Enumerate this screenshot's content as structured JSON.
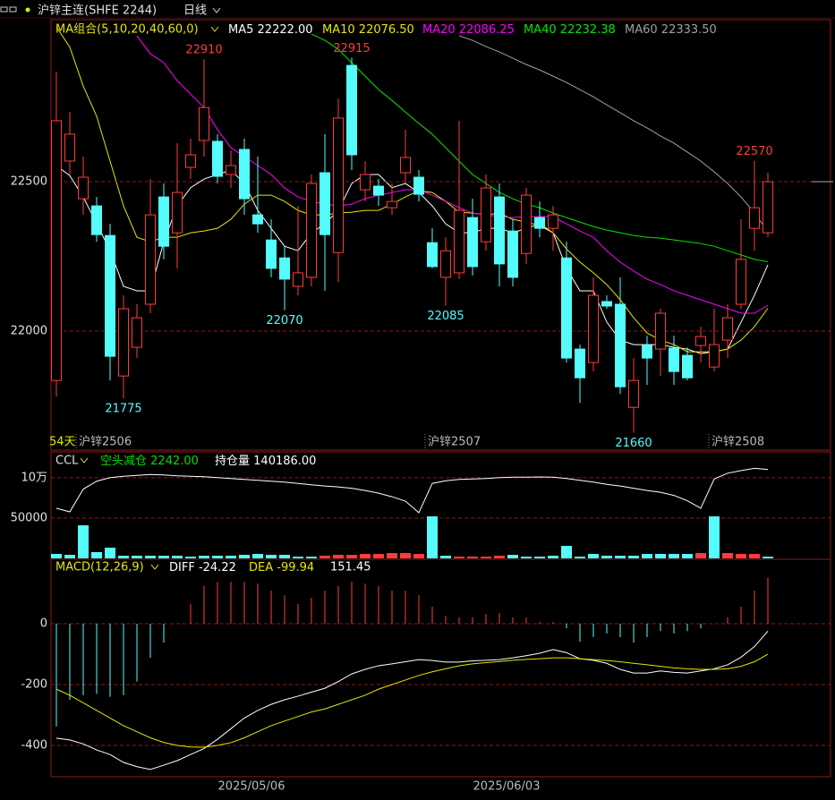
{
  "header": {
    "title": "沪锌主连(SHFE 2244)",
    "period": "日线"
  },
  "chart_data": [
    {
      "type": "candlestick",
      "title": "MA组合(5,10,20,40,60,0)",
      "categories": [
        null,
        null,
        null,
        null,
        null,
        null,
        null,
        null,
        null,
        null,
        null,
        null,
        null,
        null,
        "2025/05/06",
        null,
        null,
        null,
        null,
        null,
        null,
        null,
        null,
        null,
        null,
        null,
        null,
        null,
        null,
        null,
        null,
        null,
        null,
        "2025/06/03",
        null,
        null,
        null,
        null,
        null,
        null,
        null,
        null,
        null,
        null,
        null,
        null,
        null,
        null,
        null,
        null,
        null,
        null,
        null,
        null
      ],
      "open": [
        21835,
        22569,
        22443,
        22419,
        22320,
        21850,
        21946,
        22090,
        22449,
        22329,
        22548,
        22638,
        22635,
        22524,
        22608,
        22389,
        22305,
        22245,
        22150,
        22180,
        22530,
        22263,
        22889,
        22473,
        22485,
        22413,
        22530,
        22515,
        22296,
        22180,
        22195,
        22380,
        22299,
        22449,
        22335,
        22260,
        22380,
        22344,
        22245,
        21940,
        21895,
        22099,
        22090,
        21745,
        21952,
        21940,
        21943,
        21919,
        21952,
        21880,
        21970,
        22090,
        22344,
        22329
      ],
      "high": [
        22868,
        22733,
        22584,
        22449,
        22359,
        22120,
        22090,
        22509,
        22494,
        22629,
        22644,
        22910,
        22659,
        22605,
        22644,
        22584,
        22374,
        22284,
        22419,
        22524,
        22659,
        22778,
        22915,
        22569,
        22509,
        22494,
        22674,
        22539,
        22344,
        22314,
        22704,
        22443,
        22524,
        22494,
        22374,
        22479,
        22434,
        22419,
        22299,
        21955,
        22180,
        22120,
        22180,
        21910,
        21985,
        22075,
        21985,
        21946,
        22015,
        22075,
        22090,
        22374,
        22570,
        22530
      ],
      "low": [
        21781,
        22524,
        22389,
        22299,
        21835,
        21775,
        21910,
        22060,
        22240,
        22210,
        22509,
        22584,
        22494,
        22479,
        22389,
        22329,
        22180,
        22070,
        22120,
        22150,
        22135,
        22165,
        22539,
        22434,
        22419,
        22389,
        22494,
        22434,
        22210,
        22085,
        22174,
        22186,
        22269,
        22150,
        22150,
        22225,
        22314,
        22269,
        21895,
        21760,
        21865,
        22075,
        21790,
        21660,
        21820,
        21850,
        21820,
        21835,
        21895,
        21865,
        21910,
        22075,
        22269,
        22314
      ],
      "close": [
        22704,
        22659,
        22515,
        22323,
        21916,
        22075,
        22045,
        22389,
        22284,
        22464,
        22590,
        22748,
        22518,
        22554,
        22443,
        22359,
        22210,
        22174,
        22195,
        22494,
        22323,
        22713,
        22590,
        22524,
        22455,
        22434,
        22581,
        22458,
        22216,
        22269,
        22404,
        22216,
        22479,
        22225,
        22180,
        22455,
        22344,
        22389,
        21910,
        21844,
        22120,
        22084,
        21814,
        21835,
        21910,
        22060,
        21865,
        21844,
        21982,
        21955,
        22045,
        22240,
        22413,
        22500
      ],
      "up_color": "#ff3b3b",
      "down_color": "#54fcfc",
      "ylim": [
        21602,
        23042
      ],
      "yticks": [
        22000,
        22500
      ],
      "grid": true,
      "series": [
        {
          "name": "MA5",
          "color": "#ffffff",
          "legend_value": "22222.00",
          "values": [
            22554,
            22520,
            22449,
            22360,
            22269,
            22150,
            22135,
            22135,
            22299,
            22419,
            22480,
            22509,
            22524,
            22539,
            22494,
            22404,
            22344,
            22284,
            22269,
            22329,
            22359,
            22404,
            22494,
            22524,
            22524,
            22480,
            22494,
            22464,
            22419,
            22359,
            22329,
            22329,
            22344,
            22344,
            22329,
            22344,
            22359,
            22329,
            22210,
            22135,
            22135,
            22030,
            21970,
            21955,
            21955,
            21955,
            21946,
            21940,
            21925,
            21931,
            21940,
            22030,
            22120,
            22222
          ]
        },
        {
          "name": "MA10",
          "color": "#e6e600",
          "legend_value": "22076.50",
          "values": [
            23018,
            22950,
            22820,
            22719,
            22569,
            22419,
            22314,
            22299,
            22314,
            22314,
            22329,
            22335,
            22344,
            22374,
            22425,
            22455,
            22455,
            22434,
            22404,
            22389,
            22389,
            22395,
            22398,
            22404,
            22404,
            22425,
            22449,
            22470,
            22464,
            22434,
            22398,
            22395,
            22389,
            22395,
            22374,
            22365,
            22353,
            22329,
            22275,
            22231,
            22195,
            22156,
            22105,
            22045,
            21994,
            21970,
            21955,
            21931,
            21931,
            21931,
            21940,
            21970,
            22015,
            22076.5
          ]
        },
        {
          "name": "MA20",
          "color": "#ff00ff",
          "legend_value": "22086.25",
          "values": [
            null,
            null,
            null,
            null,
            null,
            null,
            22988,
            22928,
            22898,
            22838,
            22793,
            22748,
            22674,
            22614,
            22584,
            22554,
            22524,
            22479,
            22449,
            22434,
            22425,
            22419,
            22425,
            22443,
            22455,
            22464,
            22473,
            22473,
            22455,
            22434,
            22413,
            22395,
            22389,
            22383,
            22380,
            22383,
            22383,
            22383,
            22359,
            22335,
            22314,
            22269,
            22231,
            22201,
            22174,
            22156,
            22135,
            22120,
            22105,
            22090,
            22075,
            22060,
            22060,
            22086.25
          ]
        },
        {
          "name": "MA40",
          "color": "#00e600",
          "legend_value": "22232.38",
          "values": [
            null,
            null,
            null,
            null,
            null,
            null,
            null,
            null,
            null,
            null,
            null,
            null,
            null,
            null,
            null,
            null,
            null,
            null,
            null,
            22994,
            22973,
            22943,
            22898,
            22853,
            22808,
            22772,
            22733,
            22695,
            22659,
            22614,
            22569,
            22524,
            22494,
            22464,
            22443,
            22425,
            22413,
            22395,
            22380,
            22365,
            22350,
            22338,
            22329,
            22320,
            22314,
            22311,
            22305,
            22299,
            22293,
            22284,
            22269,
            22255,
            22240,
            22232.38
          ]
        },
        {
          "name": "MA60",
          "color": "#a0a0a0",
          "legend_value": "22333.50",
          "values": [
            null,
            null,
            null,
            null,
            null,
            null,
            null,
            null,
            null,
            null,
            null,
            null,
            null,
            null,
            null,
            null,
            null,
            null,
            null,
            null,
            null,
            null,
            null,
            null,
            null,
            null,
            null,
            null,
            null,
            null,
            22988,
            22973,
            22952,
            22934,
            22913,
            22892,
            22874,
            22853,
            22832,
            22808,
            22784,
            22757,
            22731,
            22704,
            22680,
            22653,
            22629,
            22599,
            22569,
            22533,
            22494,
            22449,
            22395,
            22333.5
          ]
        }
      ],
      "annotations": [
        22910,
        22915,
        22570,
        21775,
        22070,
        22085,
        21660
      ],
      "period_label": "54天",
      "contract_labels": [
        "沪锌2506",
        "沪锌2507",
        "沪锌2508"
      ]
    },
    {
      "type": "bar",
      "title": "CCL",
      "status": "空头减仓",
      "status_value": "2242.00",
      "values": [
        5500,
        4400,
        41000,
        7800,
        13300,
        3300,
        3300,
        3300,
        3300,
        3300,
        2200,
        3300,
        3300,
        3300,
        4400,
        5500,
        4400,
        4400,
        2200,
        2200,
        3300,
        4400,
        4400,
        5500,
        5500,
        6600,
        6600,
        5500,
        52100,
        3300,
        2200,
        2200,
        2200,
        3300,
        4400,
        2200,
        2200,
        3300,
        15500,
        2200,
        5500,
        3300,
        3300,
        3300,
        5500,
        5500,
        5500,
        5500,
        6600,
        52100,
        6600,
        5500,
        5500,
        2200
      ],
      "colors": [
        "#54fcfc",
        "#54fcfc",
        "#54fcfc",
        "#54fcfc",
        "#54fcfc",
        "#54fcfc",
        "#54fcfc",
        "#54fcfc",
        "#54fcfc",
        "#54fcfc",
        "#54fcfc",
        "#54fcfc",
        "#54fcfc",
        "#54fcfc",
        "#54fcfc",
        "#54fcfc",
        "#54fcfc",
        "#54fcfc",
        "#54fcfc",
        "#54fcfc",
        "#ff3b3b",
        "#ff3b3b",
        "#ff3b3b",
        "#ff3b3b",
        "#ff3b3b",
        "#ff3b3b",
        "#ff3b3b",
        "#ff3b3b",
        "#54fcfc",
        "#54fcfc",
        "#ff3b3b",
        "#ff3b3b",
        "#ff3b3b",
        "#ff3b3b",
        "#54fcfc",
        "#54fcfc",
        "#54fcfc",
        "#54fcfc",
        "#54fcfc",
        "#54fcfc",
        "#54fcfc",
        "#54fcfc",
        "#54fcfc",
        "#54fcfc",
        "#54fcfc",
        "#54fcfc",
        "#54fcfc",
        "#54fcfc",
        "#ff3b3b",
        "#54fcfc",
        "#ff3b3b",
        "#ff3b3b",
        "#ff3b3b",
        "#54fcfc"
      ],
      "ylim": [
        0,
        132000
      ],
      "yticks": [
        {
          "value": 100000,
          "label": "10万"
        },
        50000
      ],
      "grid": true,
      "y2lim": [
        40000,
        160000
      ],
      "series": [
        {
          "name": "持仓量",
          "color": "#ffffff",
          "axis": "y2",
          "legend_value": "140186.00",
          "values": [
            96500,
            92400,
            118000,
            127000,
            131000,
            132500,
            133500,
            134500,
            134000,
            133000,
            132500,
            132000,
            131000,
            130000,
            129000,
            128000,
            127000,
            126000,
            124500,
            123000,
            121500,
            120500,
            119000,
            116500,
            113500,
            109500,
            104500,
            91500,
            124500,
            127500,
            129000,
            129500,
            130000,
            131000,
            131500,
            131500,
            131800,
            131500,
            130000,
            128000,
            126000,
            123500,
            121500,
            119000,
            116500,
            114500,
            111000,
            105000,
            96500,
            129500,
            136000,
            139000,
            141500,
            140186
          ]
        }
      ]
    },
    {
      "type": "macd",
      "title": "MACD(12,26,9)",
      "values": [
        -338,
        -250,
        -235,
        -230,
        -240,
        -235,
        -190,
        -112,
        -62,
        0,
        65,
        124,
        138,
        138,
        138,
        132,
        109,
        94,
        65,
        85,
        109,
        124,
        138,
        132,
        124,
        109,
        109,
        94,
        56,
        26,
        21,
        21,
        32,
        35,
        21,
        21,
        6,
        6,
        -15,
        -59,
        -44,
        -32,
        -44,
        -62,
        -44,
        -24,
        -32,
        -24,
        -15,
        0,
        21,
        56,
        109,
        151.45
      ],
      "up_color": "#ff3b3b",
      "down_color": "#54fcfc",
      "ylim": [
        -503,
        212
      ],
      "yticks": [
        0,
        -200,
        -400
      ],
      "grid": true,
      "series": [
        {
          "name": "DIFF",
          "color": "#ffffff",
          "values": [
            -376,
            -382,
            -395,
            -415,
            -430,
            -456,
            -470,
            -479,
            -465,
            -450,
            -430,
            -410,
            -380,
            -345,
            -310,
            -285,
            -265,
            -250,
            -238,
            -225,
            -212,
            -190,
            -165,
            -150,
            -138,
            -132,
            -125,
            -118,
            -121,
            -126,
            -126,
            -122,
            -120,
            -118,
            -112,
            -105,
            -97,
            -85,
            -95,
            -115,
            -120,
            -130,
            -150,
            -162,
            -162,
            -155,
            -160,
            -162,
            -155,
            -148,
            -135,
            -110,
            -75,
            -24.22
          ]
        },
        {
          "name": "DEA",
          "color": "#e6e600",
          "values": [
            -215,
            -235,
            -260,
            -285,
            -310,
            -335,
            -355,
            -375,
            -390,
            -400,
            -405,
            -406,
            -400,
            -391,
            -375,
            -355,
            -335,
            -320,
            -305,
            -290,
            -280,
            -265,
            -250,
            -235,
            -215,
            -200,
            -185,
            -170,
            -158,
            -148,
            -138,
            -132,
            -128,
            -124,
            -120,
            -117,
            -115,
            -112,
            -112,
            -115,
            -118,
            -121,
            -125,
            -130,
            -135,
            -140,
            -145,
            -148,
            -150,
            -150,
            -148,
            -140,
            -125,
            -99.94
          ]
        }
      ]
    }
  ]
}
